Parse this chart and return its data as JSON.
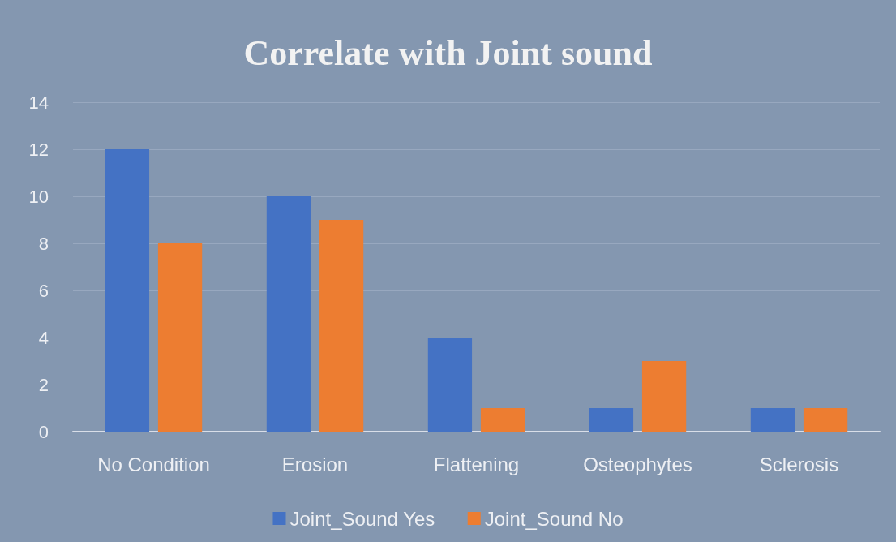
{
  "chart_data": {
    "type": "bar",
    "title": "Correlate with Joint sound",
    "categories": [
      "No Condition",
      "Erosion",
      "Flattening",
      "Osteophytes",
      "Sclerosis"
    ],
    "series": [
      {
        "name": "Joint_Sound Yes",
        "color": "#4472c4",
        "values": [
          12,
          10,
          4,
          1,
          1
        ]
      },
      {
        "name": "Joint_Sound No",
        "color": "#ed7d31",
        "values": [
          8,
          9,
          1,
          3,
          1
        ]
      }
    ],
    "ylim": [
      0,
      14
    ],
    "yticks": [
      0,
      2,
      4,
      6,
      8,
      10,
      12,
      14
    ],
    "grid": "y",
    "legend": "bottom"
  }
}
